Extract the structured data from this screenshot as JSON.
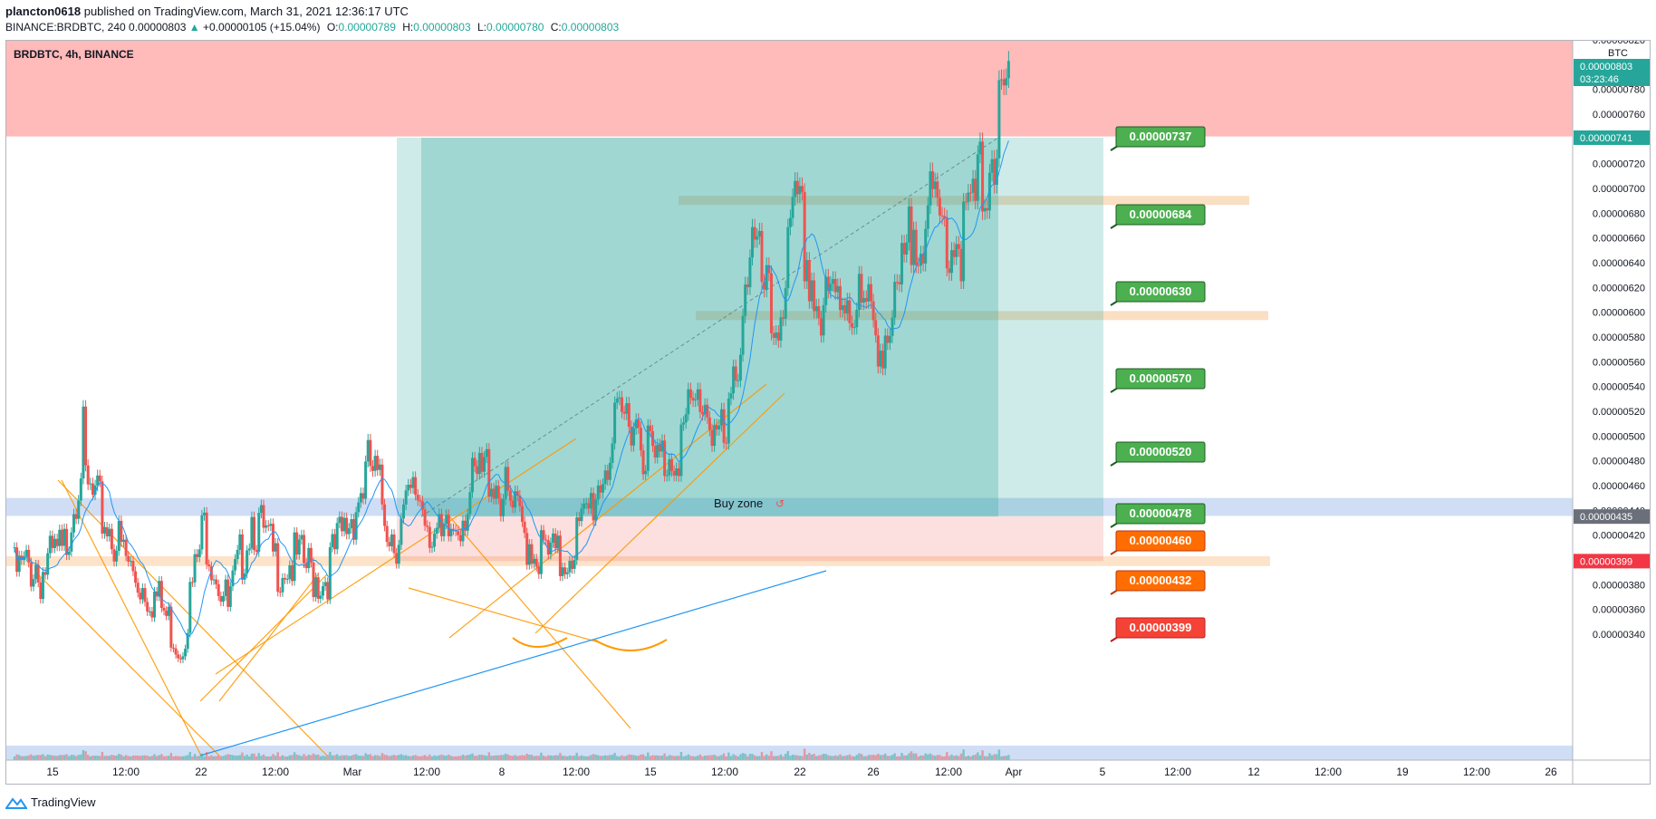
{
  "header": {
    "author": "plancton0618",
    "published_text": "published on TradingView.com, March 31, 2021 12:36:17 UTC",
    "symbol_line": "BINANCE:BRDBTC, 240",
    "last": "0.00000803",
    "change": "+0.00000105 (+15.04%)",
    "o_label": "O:",
    "o": "0.00000789",
    "h_label": "H:",
    "h": "0.00000803",
    "l_label": "L:",
    "l": "0.00000780",
    "c_label": "C:",
    "c": "0.00000803"
  },
  "chart_title": "BRDBTC, 4h, BINANCE",
  "footer": {
    "brand": "TradingView"
  },
  "colors": {
    "up": "#26a69a",
    "down": "#ef5350",
    "ma": "#2196f3",
    "target": "#4caf50",
    "entry": "#ff6d00",
    "stop": "#f44336",
    "resistance_zone": "#ffbaba",
    "buy_zone": "#c3d6f2",
    "support_band": "#fde0c4"
  },
  "chart_data": {
    "type": "candlestick",
    "currency": "BTC",
    "ylim": [
      3.3e-06,
      8.2e-06
    ],
    "y_ticks": [
      "0.00000340",
      "0.00000360",
      "0.00000380",
      "0.00000400",
      "0.00000420",
      "0.00000440",
      "0.00000460",
      "0.00000480",
      "0.00000500",
      "0.00000520",
      "0.00000540",
      "0.00000560",
      "0.00000580",
      "0.00000600",
      "0.00000620",
      "0.00000640",
      "0.00000660",
      "0.00000680",
      "0.00000700",
      "0.00000720",
      "0.00000740",
      "0.00000760",
      "0.00000780",
      "0.00000800",
      "0.00000820"
    ],
    "x_ticks": [
      "15",
      "12:00",
      "22",
      "12:00",
      "Mar",
      "12:00",
      "8",
      "12:00",
      "15",
      "12:00",
      "22",
      "26",
      "12:00",
      "Apr",
      "5",
      "12:00",
      "12",
      "12:00",
      "19",
      "12:00",
      "26"
    ],
    "price_badges": {
      "last": "0.00000803",
      "countdown": "03:23:46",
      "level_top": "0.00000741",
      "level_entry": "0.00000435",
      "level_stop": "0.00000399"
    },
    "targets": [
      "0.00000737",
      "0.00000684",
      "0.00000630",
      "0.00000570",
      "0.00000520",
      "0.00000478"
    ],
    "entries": [
      "0.00000460",
      "0.00000432"
    ],
    "stop": "0.00000399",
    "annotation": "Buy zone",
    "trend": [
      [
        4e-06,
        4.1e-06
      ],
      [
        3.98e-06,
        4.2e-06
      ],
      [
        4.1e-06,
        5.2e-06
      ],
      [
        4.7e-06,
        4.4e-06
      ],
      [
        4.4e-06,
        4e-06
      ],
      [
        4e-06,
        3.8e-06
      ],
      [
        3.8e-06,
        3.4e-06
      ],
      [
        3.4e-06,
        4.4e-06
      ],
      [
        4.4e-06,
        3.7e-06
      ],
      [
        3.7e-06,
        4.5e-06
      ],
      [
        4.5e-06,
        4.1e-06
      ],
      [
        4.1e-06,
        4.1e-06
      ],
      [
        4.1e-06,
        3.95e-06
      ],
      [
        3.95e-06,
        4.4e-06
      ],
      [
        4.4e-06,
        4.9e-06
      ],
      [
        4.9e-06,
        4.3e-06
      ],
      [
        4.3e-06,
        4.7e-06
      ],
      [
        4.7e-06,
        4.2e-06
      ],
      [
        4.2e-06,
        4.6e-06
      ],
      [
        4.6e-06,
        4.9e-06
      ],
      [
        4.9e-06,
        4.5e-06
      ],
      [
        4.5e-06,
        4.2e-06
      ],
      [
        4.2e-06,
        4.1e-06
      ],
      [
        4.1e-06,
        4.4e-06
      ],
      [
        4.4e-06,
        5e-06
      ],
      [
        5e-06,
        5.4e-06
      ],
      [
        5.4e-06,
        4.9e-06
      ],
      [
        4.9e-06,
        5.1e-06
      ],
      [
        5.1e-06,
        5.5e-06
      ],
      [
        5.5e-06,
        5e-06
      ],
      [
        5e-06,
        6.8e-06
      ],
      [
        6.8e-06,
        6e-06
      ],
      [
        6e-06,
        7e-06
      ],
      [
        7e-06,
        6.1e-06
      ],
      [
        6.1e-06,
        6.4e-06
      ],
      [
        6.4e-06,
        6.1e-06
      ],
      [
        6.1e-06,
        6e-06
      ],
      [
        6e-06,
        7e-06
      ],
      [
        7e-06,
        6.9e-06
      ],
      [
        6.9e-06,
        6.8e-06
      ],
      [
        6.8e-06,
        7.4e-06
      ],
      [
        7.4e-06,
        8e-06
      ]
    ]
  }
}
